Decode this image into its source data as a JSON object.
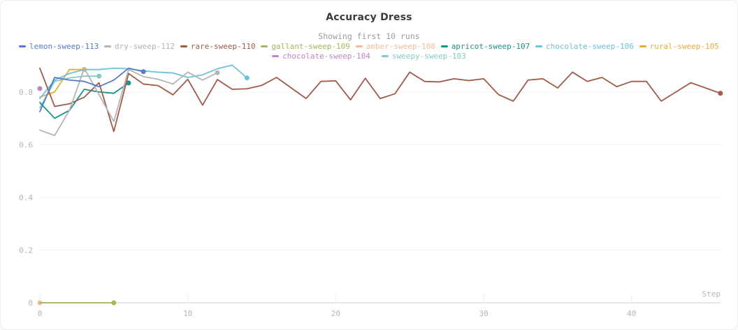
{
  "header": {
    "title": "Accuracy Dress",
    "subtitle": "Showing first 10 runs"
  },
  "chart_data": {
    "type": "line",
    "title": "Accuracy Dress",
    "subtitle": "Showing first 10 runs",
    "xlabel": "Step",
    "ylabel": "",
    "x_ticks": [
      0,
      10,
      20,
      30,
      40
    ],
    "y_ticks": [
      0,
      0.2,
      0.4,
      0.6,
      0.8
    ],
    "y_tick_labels": [
      "0",
      "0.2",
      "0.4",
      "0.6",
      "0.8"
    ],
    "xlim": [
      0,
      46.5
    ],
    "ylim": [
      0,
      0.9
    ],
    "grid": "faint-horizontal",
    "legend_position": "top",
    "legend_wrap_after": 8,
    "axis_color": "#e7e7e7",
    "grid_color": "#f6f2f1",
    "tick_label_color": "#b2b6bc",
    "series": [
      {
        "name": "lemon-sweep-113",
        "color": "#587ac8",
        "x_start": 0,
        "values": [
          0.725,
          0.855,
          0.845,
          0.84,
          0.82,
          0.845,
          0.89,
          0.877
        ]
      },
      {
        "name": "dry-sweep-112",
        "color": "#b4b4b4",
        "x_start": 0,
        "values": [
          0.655,
          0.635,
          0.73,
          0.89,
          0.79,
          0.688,
          0.885,
          0.858,
          0.848,
          0.83,
          0.875,
          0.845,
          0.873
        ]
      },
      {
        "name": "rare-sweep-110",
        "color": "#9e5b49",
        "x_start": 0,
        "values": [
          0.89,
          0.745,
          0.755,
          0.78,
          0.835,
          0.65,
          0.87,
          0.83,
          0.824,
          0.789,
          0.848,
          0.75,
          0.847,
          0.81,
          0.812,
          0.825,
          0.855,
          0.815,
          0.775,
          0.84,
          0.842,
          0.77,
          0.852,
          0.775,
          0.793,
          0.875,
          0.84,
          0.838,
          0.85,
          0.843,
          0.85,
          0.79,
          0.765,
          0.845,
          0.85,
          0.815,
          0.875,
          0.84,
          0.855,
          0.82,
          0.84,
          0.84,
          0.765,
          0.8,
          0.835,
          0.815,
          0.795
        ]
      },
      {
        "name": "gallant-sweep-109",
        "color": "#a3b859",
        "x_start": 0,
        "values": [
          0,
          0,
          0,
          0,
          0,
          0
        ]
      },
      {
        "name": "amber-sweep-108",
        "color": "#f0bd9c",
        "x_start": 0,
        "values": [
          0
        ]
      },
      {
        "name": "apricot-sweep-107",
        "color": "#199488",
        "x_start": 0,
        "values": [
          0.76,
          0.7,
          0.73,
          0.81,
          0.8,
          0.795,
          0.834
        ]
      },
      {
        "name": "chocolate-sweep-106",
        "color": "#6cc2dc",
        "x_start": 0,
        "values": [
          0.775,
          0.845,
          0.87,
          0.885,
          0.885,
          0.89,
          0.888,
          0.88,
          0.875,
          0.872,
          0.855,
          0.865,
          0.888,
          0.902,
          0.853
        ]
      },
      {
        "name": "rural-sweep-105",
        "color": "#e7ae37",
        "x_start": 0,
        "values": [
          0.78,
          0.8,
          0.885,
          0.885
        ]
      },
      {
        "name": "chocolate-sweep-104",
        "color": "#bd85c1",
        "x_start": 0,
        "values": [
          0.813
        ]
      },
      {
        "name": "sweepy-sweep-103",
        "color": "#80cbc2",
        "x_start": 0,
        "values": [
          0.74,
          0.84,
          0.853,
          0.86,
          0.86
        ]
      }
    ]
  }
}
